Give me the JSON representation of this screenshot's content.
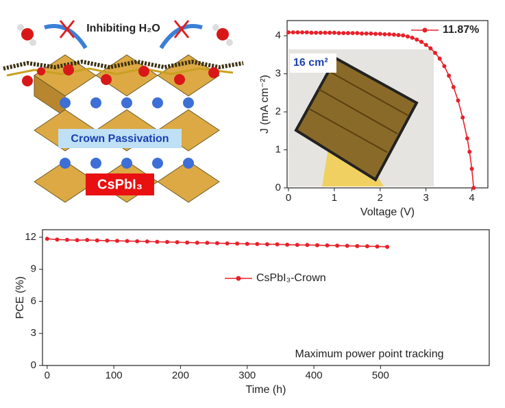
{
  "illustration": {
    "top_label": "Inhibiting H₂O",
    "middle_label": "Crown Passivation",
    "bottom_label": "CsPbI₃"
  },
  "chart_data": [
    {
      "type": "line",
      "x_label": "Voltage (V)",
      "y_label": "J (mA cm⁻²)",
      "inset_label": "16 cm²",
      "xlim": [
        -0.03,
        4.35
      ],
      "ylim": [
        0,
        4.4
      ],
      "xticks": [
        0,
        1,
        2,
        3,
        4
      ],
      "yticks": [
        0,
        1,
        2,
        3,
        4
      ],
      "legend": "upper right",
      "x": [
        0,
        0.1,
        0.2,
        0.3,
        0.4,
        0.5,
        0.6,
        0.7,
        0.8,
        0.9,
        1.0,
        1.1,
        1.2,
        1.3,
        1.4,
        1.5,
        1.6,
        1.7,
        1.8,
        1.9,
        2.0,
        2.1,
        2.2,
        2.3,
        2.4,
        2.5,
        2.6,
        2.7,
        2.8,
        2.9,
        3.0,
        3.1,
        3.2,
        3.3,
        3.4,
        3.5,
        3.6,
        3.7,
        3.8,
        3.9,
        3.95,
        4.0,
        4.04
      ],
      "series": [
        {
          "name": "11.87%",
          "color": "#e8202a",
          "values": [
            4.09,
            4.09,
            4.09,
            4.09,
            4.09,
            4.08,
            4.08,
            4.08,
            4.08,
            4.08,
            4.08,
            4.07,
            4.07,
            4.07,
            4.07,
            4.07,
            4.06,
            4.06,
            4.06,
            4.05,
            4.05,
            4.04,
            4.04,
            4.03,
            4.02,
            4.01,
            3.98,
            3.95,
            3.9,
            3.84,
            3.76,
            3.67,
            3.55,
            3.4,
            3.2,
            2.95,
            2.65,
            2.3,
            1.85,
            1.3,
            0.95,
            0.5,
            0
          ]
        }
      ]
    },
    {
      "type": "line",
      "x_label": "Time (h)",
      "y_label": "PCE (%)",
      "annotation": "Maximum power point tracking",
      "xlim": [
        -7,
        663
      ],
      "ylim": [
        0,
        12.7
      ],
      "xticks": [
        0,
        100,
        200,
        300,
        400,
        500
      ],
      "yticks": [
        0,
        3,
        6,
        9,
        12
      ],
      "legend": "center",
      "x": [
        0,
        15,
        30,
        45,
        60,
        75,
        90,
        105,
        120,
        135,
        150,
        165,
        180,
        195,
        210,
        225,
        240,
        255,
        270,
        285,
        300,
        315,
        330,
        345,
        360,
        375,
        390,
        405,
        420,
        435,
        450,
        465,
        480,
        495,
        510
      ],
      "series": [
        {
          "name": "CsPbI₃-Crown",
          "color": "#e8202a",
          "values": [
            11.85,
            11.78,
            11.75,
            11.72,
            11.74,
            11.7,
            11.68,
            11.66,
            11.64,
            11.62,
            11.6,
            11.57,
            11.55,
            11.53,
            11.5,
            11.48,
            11.47,
            11.44,
            11.42,
            11.4,
            11.38,
            11.36,
            11.34,
            11.33,
            11.3,
            11.28,
            11.27,
            11.25,
            11.23,
            11.21,
            11.19,
            11.17,
            11.15,
            11.13,
            11.1
          ]
        }
      ]
    }
  ]
}
